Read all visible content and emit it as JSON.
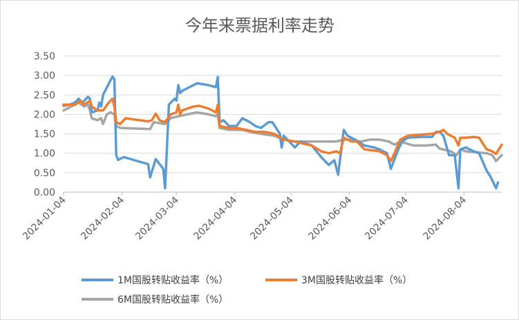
{
  "chart_data": {
    "type": "line",
    "title": "今年来票据利率走势",
    "xlabel": "",
    "ylabel": "",
    "ylim": [
      0,
      3.5
    ],
    "yticks": [
      "0.00",
      "0.50",
      "1.00",
      "1.50",
      "2.00",
      "2.50",
      "3.00",
      "3.50"
    ],
    "xlim": [
      "2024-01-04",
      "2024-08-24"
    ],
    "xticks": [
      "2024-01-04",
      "2024-02-04",
      "2024-03-04",
      "2024-04-04",
      "2024-05-04",
      "2024-06-04",
      "2024-07-04",
      "2024-08-04"
    ],
    "grid": true,
    "legend_position": "bottom",
    "series": [
      {
        "name": "1M国股转贴收益率（%）",
        "color": "#5B9BD5",
        "points": [
          [
            "2024-01-04",
            2.22
          ],
          [
            "2024-01-07",
            2.25
          ],
          [
            "2024-01-10",
            2.3
          ],
          [
            "2024-01-12",
            2.4
          ],
          [
            "2024-01-14",
            2.3
          ],
          [
            "2024-01-17",
            2.45
          ],
          [
            "2024-01-18",
            2.4
          ],
          [
            "2024-01-19",
            2.05
          ],
          [
            "2024-01-22",
            2.1
          ],
          [
            "2024-01-23",
            2.3
          ],
          [
            "2024-01-24",
            2.2
          ],
          [
            "2024-01-25",
            2.5
          ],
          [
            "2024-01-30",
            2.97
          ],
          [
            "2024-01-31",
            2.9
          ],
          [
            "2024-02-01",
            0.95
          ],
          [
            "2024-02-02",
            0.83
          ],
          [
            "2024-02-05",
            0.9
          ],
          [
            "2024-02-18",
            0.72
          ],
          [
            "2024-02-19",
            0.38
          ],
          [
            "2024-02-22",
            0.85
          ],
          [
            "2024-02-26",
            0.6
          ],
          [
            "2024-02-27",
            0.1
          ],
          [
            "2024-02-29",
            2.25
          ],
          [
            "2024-03-03",
            2.4
          ],
          [
            "2024-03-04",
            2.35
          ],
          [
            "2024-03-05",
            2.75
          ],
          [
            "2024-03-06",
            2.55
          ],
          [
            "2024-03-07",
            2.6
          ],
          [
            "2024-03-11",
            2.7
          ],
          [
            "2024-03-15",
            2.8
          ],
          [
            "2024-03-21",
            2.75
          ],
          [
            "2024-03-25",
            2.7
          ],
          [
            "2024-03-26",
            2.96
          ],
          [
            "2024-03-27",
            1.8
          ],
          [
            "2024-03-29",
            1.85
          ],
          [
            "2024-04-01",
            1.7
          ],
          [
            "2024-04-05",
            1.7
          ],
          [
            "2024-04-08",
            1.9
          ],
          [
            "2024-04-12",
            1.8
          ],
          [
            "2024-04-15",
            1.7
          ],
          [
            "2024-04-18",
            1.65
          ],
          [
            "2024-04-22",
            1.8
          ],
          [
            "2024-04-24",
            1.8
          ],
          [
            "2024-04-26",
            1.65
          ],
          [
            "2024-04-28",
            1.5
          ],
          [
            "2024-04-29",
            1.15
          ],
          [
            "2024-04-30",
            1.45
          ],
          [
            "2024-05-06",
            1.15
          ],
          [
            "2024-05-09",
            1.3
          ],
          [
            "2024-05-15",
            1.2
          ],
          [
            "2024-05-20",
            0.9
          ],
          [
            "2024-05-24",
            0.7
          ],
          [
            "2024-05-27",
            0.82
          ],
          [
            "2024-05-29",
            0.45
          ],
          [
            "2024-06-01",
            1.6
          ],
          [
            "2024-06-03",
            1.45
          ],
          [
            "2024-06-07",
            1.35
          ],
          [
            "2024-06-12",
            1.2
          ],
          [
            "2024-06-17",
            1.15
          ],
          [
            "2024-06-20",
            1.1
          ],
          [
            "2024-06-24",
            1.0
          ],
          [
            "2024-06-26",
            0.6
          ],
          [
            "2024-06-28",
            0.85
          ],
          [
            "2024-06-30",
            1.1
          ],
          [
            "2024-07-02",
            1.3
          ],
          [
            "2024-07-05",
            1.4
          ],
          [
            "2024-07-12",
            1.42
          ],
          [
            "2024-07-18",
            1.42
          ],
          [
            "2024-07-20",
            1.55
          ],
          [
            "2024-07-22",
            1.55
          ],
          [
            "2024-07-24",
            1.45
          ],
          [
            "2024-07-27",
            0.95
          ],
          [
            "2024-07-30",
            0.95
          ],
          [
            "2024-08-01",
            0.1
          ],
          [
            "2024-08-02",
            1.1
          ],
          [
            "2024-08-05",
            1.15
          ],
          [
            "2024-08-09",
            1.05
          ],
          [
            "2024-08-12",
            1.0
          ],
          [
            "2024-08-16",
            0.55
          ],
          [
            "2024-08-18",
            0.4
          ],
          [
            "2024-08-21",
            0.1
          ],
          [
            "2024-08-22",
            0.25
          ]
        ]
      },
      {
        "name": "3M国股转贴收益率（%）",
        "color": "#ED7D31",
        "points": [
          [
            "2024-01-04",
            2.25
          ],
          [
            "2024-01-10",
            2.25
          ],
          [
            "2024-01-13",
            2.35
          ],
          [
            "2024-01-15",
            2.25
          ],
          [
            "2024-01-18",
            2.35
          ],
          [
            "2024-01-19",
            2.2
          ],
          [
            "2024-01-22",
            2.1
          ],
          [
            "2024-01-25",
            2.1
          ],
          [
            "2024-01-28",
            2.3
          ],
          [
            "2024-01-30",
            2.4
          ],
          [
            "2024-01-31",
            2.2
          ],
          [
            "2024-02-01",
            1.8
          ],
          [
            "2024-02-03",
            1.75
          ],
          [
            "2024-02-06",
            1.9
          ],
          [
            "2024-02-18",
            1.82
          ],
          [
            "2024-02-20",
            1.85
          ],
          [
            "2024-02-22",
            2.02
          ],
          [
            "2024-02-24",
            1.85
          ],
          [
            "2024-02-27",
            1.8
          ],
          [
            "2024-03-01",
            2.0
          ],
          [
            "2024-03-04",
            2.05
          ],
          [
            "2024-03-05",
            2.25
          ],
          [
            "2024-03-06",
            2.0
          ],
          [
            "2024-03-07",
            2.1
          ],
          [
            "2024-03-13",
            2.2
          ],
          [
            "2024-03-16",
            2.22
          ],
          [
            "2024-03-21",
            2.15
          ],
          [
            "2024-03-25",
            2.05
          ],
          [
            "2024-03-26",
            2.25
          ],
          [
            "2024-03-27",
            1.7
          ],
          [
            "2024-04-01",
            1.65
          ],
          [
            "2024-04-05",
            1.65
          ],
          [
            "2024-04-10",
            1.6
          ],
          [
            "2024-04-15",
            1.55
          ],
          [
            "2024-04-20",
            1.55
          ],
          [
            "2024-04-25",
            1.5
          ],
          [
            "2024-04-30",
            1.35
          ],
          [
            "2024-05-06",
            1.3
          ],
          [
            "2024-05-10",
            1.25
          ],
          [
            "2024-05-15",
            1.2
          ],
          [
            "2024-05-20",
            1.05
          ],
          [
            "2024-05-24",
            1.0
          ],
          [
            "2024-05-28",
            1.05
          ],
          [
            "2024-05-30",
            1.0
          ],
          [
            "2024-06-01",
            1.4
          ],
          [
            "2024-06-05",
            1.3
          ],
          [
            "2024-06-08",
            1.3
          ],
          [
            "2024-06-12",
            1.1
          ],
          [
            "2024-06-20",
            1.05
          ],
          [
            "2024-06-24",
            0.95
          ],
          [
            "2024-06-26",
            0.8
          ],
          [
            "2024-06-28",
            1.0
          ],
          [
            "2024-07-01",
            1.35
          ],
          [
            "2024-07-05",
            1.45
          ],
          [
            "2024-07-12",
            1.48
          ],
          [
            "2024-07-18",
            1.5
          ],
          [
            "2024-07-22",
            1.55
          ],
          [
            "2024-07-24",
            1.6
          ],
          [
            "2024-07-26",
            1.5
          ],
          [
            "2024-07-30",
            1.4
          ],
          [
            "2024-08-01",
            1.2
          ],
          [
            "2024-08-02",
            1.4
          ],
          [
            "2024-08-05",
            1.4
          ],
          [
            "2024-08-09",
            1.42
          ],
          [
            "2024-08-12",
            1.4
          ],
          [
            "2024-08-16",
            1.1
          ],
          [
            "2024-08-19",
            1.05
          ],
          [
            "2024-08-21",
            0.98
          ],
          [
            "2024-08-24",
            1.22
          ]
        ]
      },
      {
        "name": "6M国股转贴收益率（%）",
        "color": "#A5A5A5",
        "points": [
          [
            "2024-01-04",
            2.1
          ],
          [
            "2024-01-08",
            2.2
          ],
          [
            "2024-01-12",
            2.3
          ],
          [
            "2024-01-15",
            2.2
          ],
          [
            "2024-01-17",
            2.25
          ],
          [
            "2024-01-18",
            2.1
          ],
          [
            "2024-01-19",
            1.9
          ],
          [
            "2024-01-22",
            1.85
          ],
          [
            "2024-01-24",
            1.9
          ],
          [
            "2024-01-25",
            1.75
          ],
          [
            "2024-01-27",
            2.0
          ],
          [
            "2024-01-29",
            2.05
          ],
          [
            "2024-01-31",
            2.0
          ],
          [
            "2024-02-01",
            1.7
          ],
          [
            "2024-02-03",
            1.65
          ],
          [
            "2024-02-19",
            1.62
          ],
          [
            "2024-02-21",
            1.8
          ],
          [
            "2024-02-27",
            1.75
          ],
          [
            "2024-03-01",
            1.9
          ],
          [
            "2024-03-05",
            1.95
          ],
          [
            "2024-03-10",
            2.0
          ],
          [
            "2024-03-15",
            2.05
          ],
          [
            "2024-03-21",
            2.0
          ],
          [
            "2024-03-25",
            1.95
          ],
          [
            "2024-03-26",
            2.0
          ],
          [
            "2024-03-27",
            1.65
          ],
          [
            "2024-04-01",
            1.6
          ],
          [
            "2024-04-08",
            1.6
          ],
          [
            "2024-04-12",
            1.55
          ],
          [
            "2024-04-18",
            1.5
          ],
          [
            "2024-04-25",
            1.45
          ],
          [
            "2024-04-30",
            1.35
          ],
          [
            "2024-05-06",
            1.3
          ],
          [
            "2024-05-12",
            1.3
          ],
          [
            "2024-05-20",
            1.3
          ],
          [
            "2024-05-28",
            1.3
          ],
          [
            "2024-06-01",
            1.35
          ],
          [
            "2024-06-05",
            1.35
          ],
          [
            "2024-06-10",
            1.3
          ],
          [
            "2024-06-15",
            1.35
          ],
          [
            "2024-06-20",
            1.35
          ],
          [
            "2024-06-25",
            1.3
          ],
          [
            "2024-06-28",
            1.22
          ],
          [
            "2024-07-01",
            1.3
          ],
          [
            "2024-07-08",
            1.2
          ],
          [
            "2024-07-15",
            1.2
          ],
          [
            "2024-07-20",
            1.22
          ],
          [
            "2024-07-22",
            1.12
          ],
          [
            "2024-07-28",
            1.05
          ],
          [
            "2024-07-31",
            0.95
          ],
          [
            "2024-08-02",
            1.1
          ],
          [
            "2024-08-05",
            1.05
          ],
          [
            "2024-08-12",
            1.02
          ],
          [
            "2024-08-16",
            1.0
          ],
          [
            "2024-08-19",
            0.95
          ],
          [
            "2024-08-21",
            0.8
          ],
          [
            "2024-08-24",
            0.95
          ]
        ]
      }
    ]
  }
}
